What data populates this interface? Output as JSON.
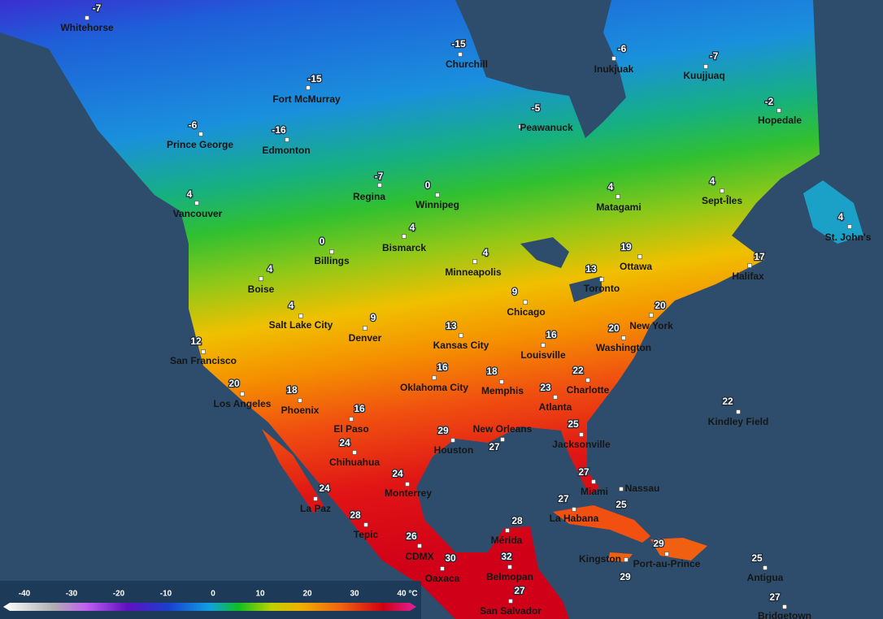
{
  "cities": [
    {
      "name": "Whitehorse",
      "temp": -7
    },
    {
      "name": "Churchill",
      "temp": -15
    },
    {
      "name": "Inukjuak",
      "temp": -6
    },
    {
      "name": "Kuujjuaq",
      "temp": -7
    },
    {
      "name": "Fort McMurray",
      "temp": -15
    },
    {
      "name": "Hopedale",
      "temp": -2
    },
    {
      "name": "Peawanuck",
      "temp": -5
    },
    {
      "name": "Prince George",
      "temp": -6
    },
    {
      "name": "Edmonton",
      "temp": -16
    },
    {
      "name": "Regina",
      "temp": -7
    },
    {
      "name": "Winnipeg",
      "temp": 0
    },
    {
      "name": "Matagami",
      "temp": 4
    },
    {
      "name": "Sept-Îles",
      "temp": 4
    },
    {
      "name": "Vancouver",
      "temp": 4
    },
    {
      "name": "St. John's",
      "temp": 4
    },
    {
      "name": "Bismarck",
      "temp": 4
    },
    {
      "name": "Billings",
      "temp": 0
    },
    {
      "name": "Minneapolis",
      "temp": 4
    },
    {
      "name": "Ottawa",
      "temp": 19
    },
    {
      "name": "Halifax",
      "temp": 17
    },
    {
      "name": "Boise",
      "temp": 4
    },
    {
      "name": "Toronto",
      "temp": 13
    },
    {
      "name": "Chicago",
      "temp": 9
    },
    {
      "name": "Salt Lake City",
      "temp": 4
    },
    {
      "name": "New York",
      "temp": 20
    },
    {
      "name": "Denver",
      "temp": 9
    },
    {
      "name": "Kansas City",
      "temp": 13
    },
    {
      "name": "Washington",
      "temp": 20
    },
    {
      "name": "San Francisco",
      "temp": 12
    },
    {
      "name": "Louisville",
      "temp": 16
    },
    {
      "name": "Oklahoma City",
      "temp": 16
    },
    {
      "name": "Memphis",
      "temp": 18
    },
    {
      "name": "Charlotte",
      "temp": 22
    },
    {
      "name": "Atlanta",
      "temp": 23
    },
    {
      "name": "Los Angeles",
      "temp": 20
    },
    {
      "name": "Phoenix",
      "temp": 18
    },
    {
      "name": "Kindley Field",
      "temp": 22
    },
    {
      "name": "El Paso",
      "temp": 16
    },
    {
      "name": "Jacksonville",
      "temp": 25
    },
    {
      "name": "New Orleans",
      "temp": 27
    },
    {
      "name": "Houston",
      "temp": 29
    },
    {
      "name": "Chihuahua",
      "temp": 24
    },
    {
      "name": "Monterrey",
      "temp": 24
    },
    {
      "name": "Miami",
      "temp": 27
    },
    {
      "name": "Nassau",
      "temp": 25
    },
    {
      "name": "La Paz",
      "temp": 24
    },
    {
      "name": "La Habana",
      "temp": 27
    },
    {
      "name": "Tepic",
      "temp": 28
    },
    {
      "name": "Mérida",
      "temp": 28
    },
    {
      "name": "CDMX",
      "temp": 26
    },
    {
      "name": "Kingston",
      "temp": 29
    },
    {
      "name": "Port-au-Prince",
      "temp": 29
    },
    {
      "name": "Oaxaca",
      "temp": 30
    },
    {
      "name": "Belmopan",
      "temp": 32
    },
    {
      "name": "Antigua",
      "temp": 25
    },
    {
      "name": "San Salvador",
      "temp": 27
    },
    {
      "name": "Bridgetown",
      "temp": 27
    }
  ],
  "legend": {
    "ticks": [
      -40,
      -30,
      -20,
      -10,
      0,
      10,
      20,
      30,
      40
    ],
    "unit": "°C"
  }
}
